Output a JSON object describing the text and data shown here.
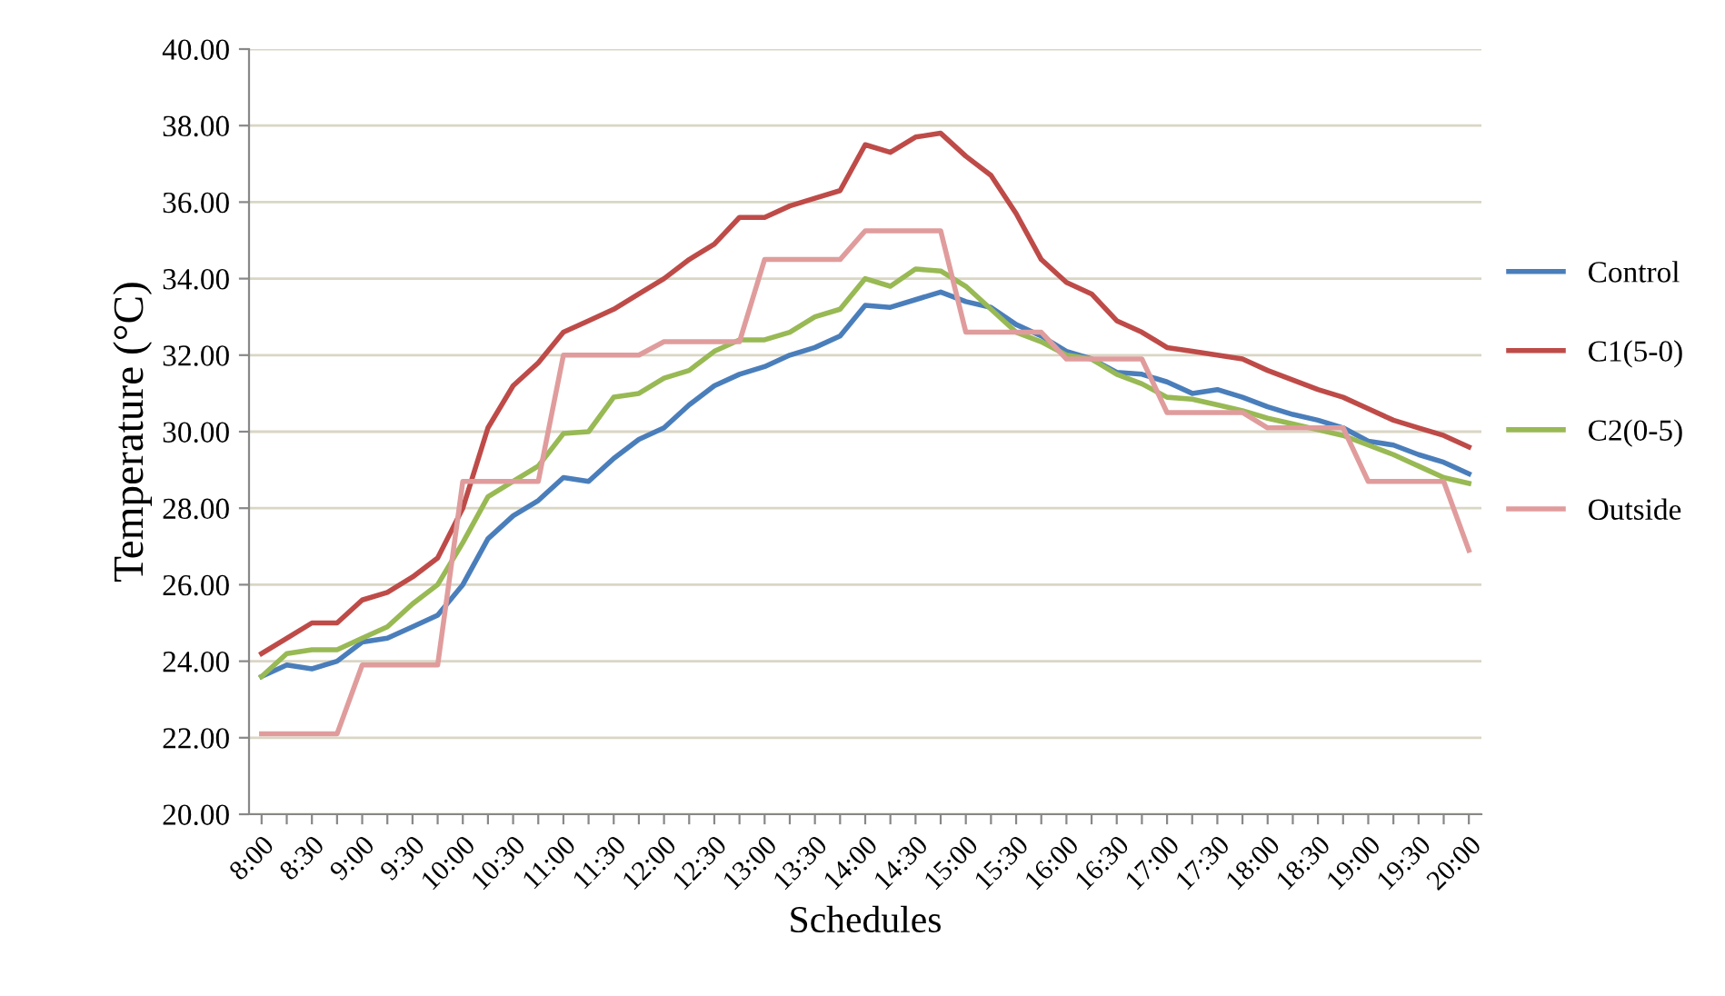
{
  "chart_data": {
    "type": "line",
    "xlabel": "Schedules",
    "ylabel": "Temperature (°C)",
    "categories": [
      "8:00",
      null,
      "8:30",
      null,
      "9:00",
      null,
      "9:30",
      null,
      "10:00",
      null,
      "10:30",
      null,
      "11:00",
      null,
      "11:30",
      null,
      "12:00",
      null,
      "12:30",
      null,
      "13:00",
      null,
      "13:30",
      null,
      "14:00",
      null,
      "14:30",
      null,
      "15:00",
      null,
      "15:30",
      null,
      "16:00",
      null,
      "16:30",
      null,
      "17:00",
      null,
      "17:30",
      null,
      "18:00",
      null,
      "18:30",
      null,
      "19:00",
      null,
      "19:30",
      null,
      "20:00"
    ],
    "series": [
      {
        "name": "Control",
        "color": "#4a7ebb",
        "values": [
          23.6,
          23.9,
          23.8,
          24.0,
          24.5,
          24.6,
          24.9,
          25.2,
          26.0,
          27.2,
          27.8,
          28.2,
          28.8,
          28.7,
          29.3,
          29.8,
          30.1,
          30.7,
          31.2,
          31.5,
          31.7,
          32.0,
          32.2,
          32.5,
          33.3,
          33.25,
          33.45,
          33.65,
          33.4,
          33.25,
          32.8,
          32.5,
          32.1,
          31.9,
          31.55,
          31.5,
          31.3,
          31.0,
          31.1,
          30.9,
          30.65,
          30.45,
          30.3,
          30.1,
          29.75,
          29.65,
          29.4,
          29.2,
          28.9
        ]
      },
      {
        "name": "C1(5-0)",
        "color": "#be4b48",
        "values": [
          24.2,
          24.6,
          25.0,
          25.0,
          25.6,
          25.8,
          26.2,
          26.7,
          28.0,
          30.1,
          31.2,
          31.8,
          32.6,
          32.9,
          33.2,
          33.6,
          34.0,
          34.5,
          34.9,
          35.6,
          35.6,
          35.9,
          36.1,
          36.3,
          37.5,
          37.3,
          37.7,
          37.8,
          37.2,
          36.7,
          35.7,
          34.5,
          33.9,
          33.6,
          32.9,
          32.6,
          32.2,
          32.1,
          32.0,
          31.9,
          31.6,
          31.35,
          31.1,
          30.9,
          30.6,
          30.3,
          30.1,
          29.9,
          29.6
        ]
      },
      {
        "name": "C2(0-5)",
        "color": "#98b954",
        "values": [
          23.6,
          24.2,
          24.3,
          24.3,
          24.6,
          24.9,
          25.5,
          26.0,
          27.1,
          28.3,
          28.7,
          29.1,
          29.95,
          30.0,
          30.9,
          31.0,
          31.4,
          31.6,
          32.1,
          32.4,
          32.4,
          32.6,
          33.0,
          33.2,
          34.0,
          33.8,
          34.25,
          34.2,
          33.8,
          33.2,
          32.6,
          32.35,
          32.0,
          31.9,
          31.5,
          31.25,
          30.9,
          30.85,
          30.7,
          30.55,
          30.35,
          30.2,
          30.05,
          29.9,
          29.65,
          29.4,
          29.1,
          28.8,
          28.65
        ]
      },
      {
        "name": "Outside",
        "color": "#e09c9c",
        "values": [
          22.1,
          22.1,
          22.1,
          22.1,
          23.9,
          23.9,
          23.9,
          23.9,
          28.7,
          28.7,
          28.7,
          28.7,
          32.0,
          32.0,
          32.0,
          32.0,
          32.35,
          32.35,
          32.35,
          32.35,
          34.5,
          34.5,
          34.5,
          34.5,
          35.25,
          35.25,
          35.25,
          35.25,
          32.6,
          32.6,
          32.6,
          32.6,
          31.9,
          31.9,
          31.9,
          31.9,
          30.5,
          30.5,
          30.5,
          30.5,
          30.1,
          30.1,
          30.1,
          30.1,
          28.7,
          28.7,
          28.7,
          28.7,
          26.9
        ]
      }
    ],
    "ylim": [
      20,
      40
    ],
    "yticks": [
      {
        "value": 20,
        "label": "20.00"
      },
      {
        "value": 22,
        "label": "22.00"
      },
      {
        "value": 24,
        "label": "24.00"
      },
      {
        "value": 26,
        "label": "26.00"
      },
      {
        "value": 28,
        "label": "28.00"
      },
      {
        "value": 30,
        "label": "30.00"
      },
      {
        "value": 32,
        "label": "32.00"
      },
      {
        "value": 34,
        "label": "34.00"
      },
      {
        "value": 36,
        "label": "36.00"
      },
      {
        "value": 38,
        "label": "38.00"
      },
      {
        "value": 40,
        "label": "40.00"
      }
    ],
    "grid": "y",
    "legend": "right",
    "marker": "none",
    "line_style": "solid"
  }
}
